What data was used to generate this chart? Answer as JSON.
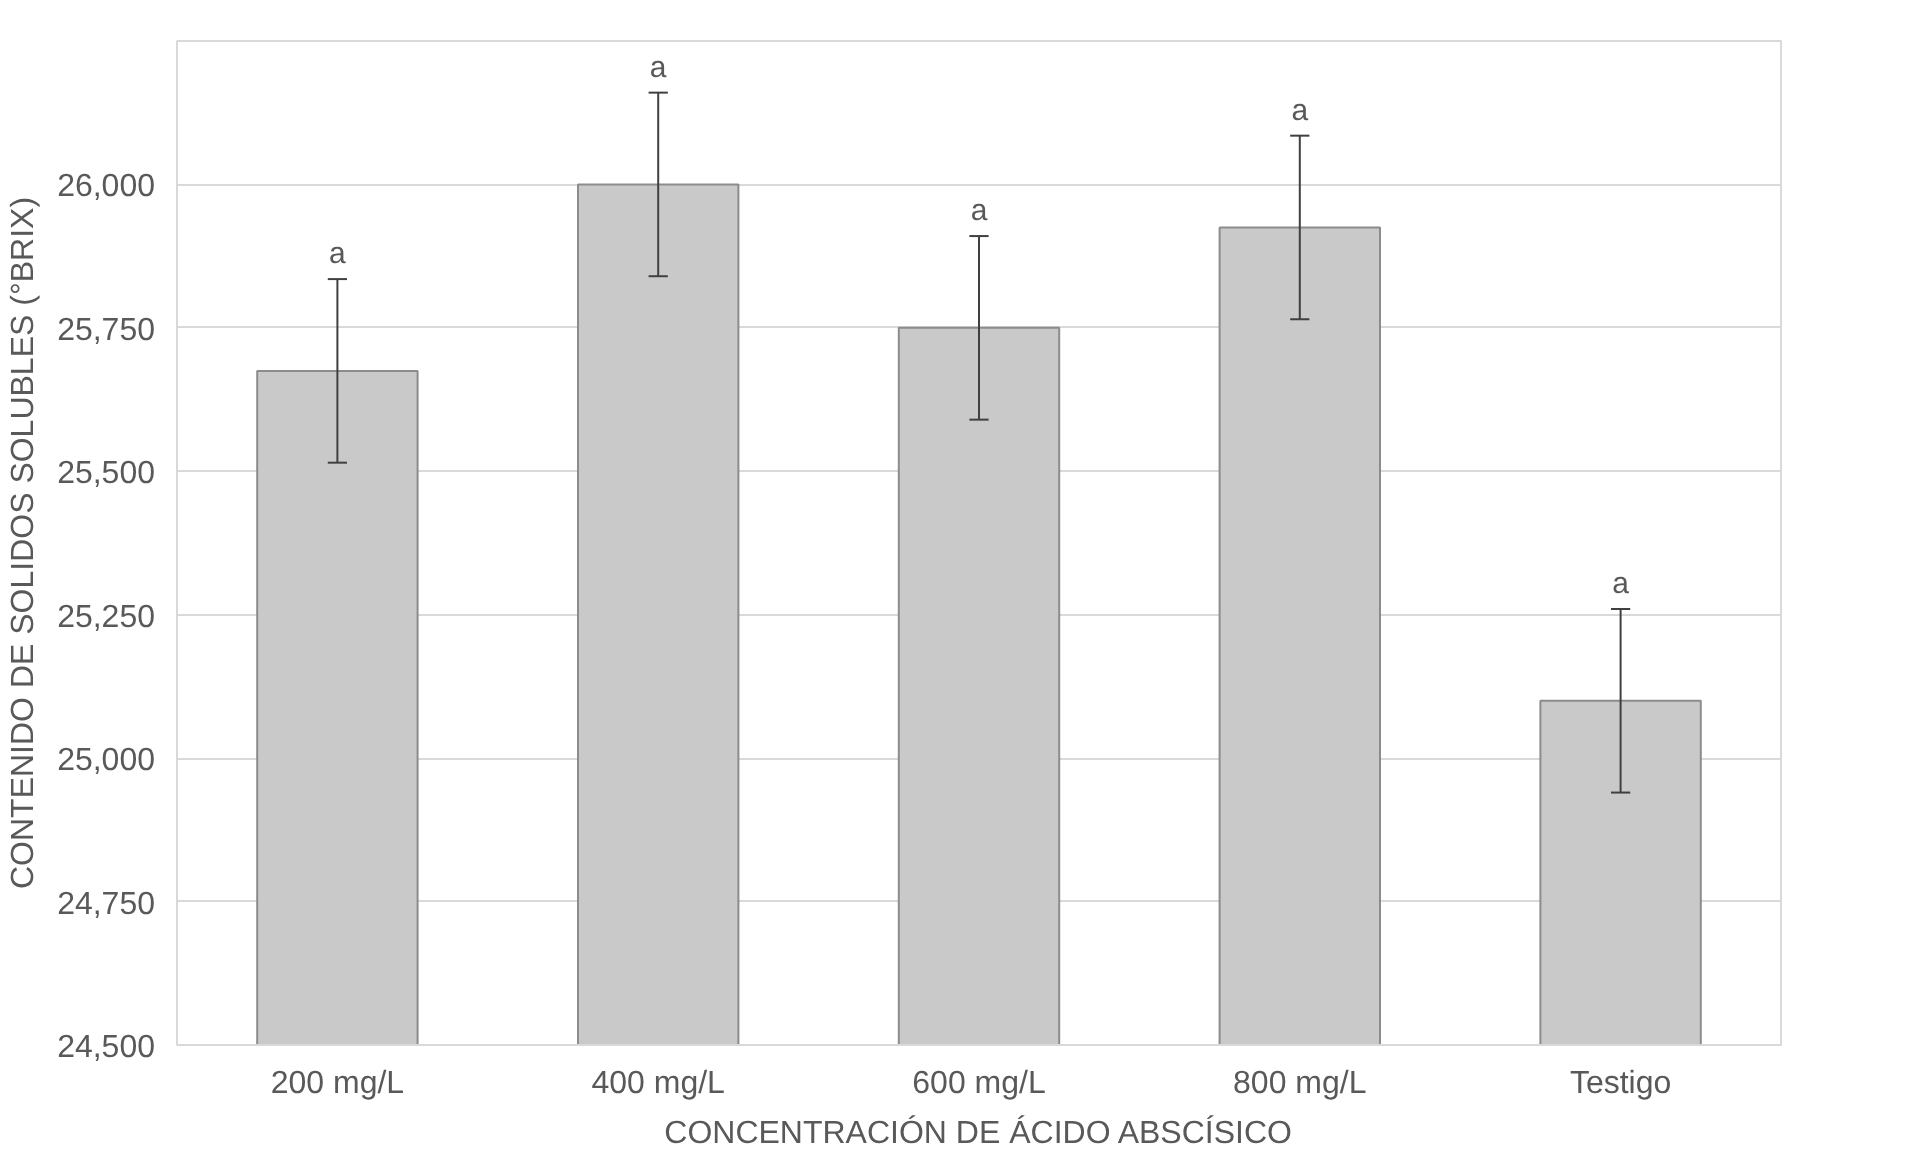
{
  "chart_data": {
    "type": "bar",
    "xlabel": "CONCENTRACIÓN DE ÁCIDO ABSCÍSICO",
    "ylabel": "CONTENIDO DE SOLIDOS SOLUBLES (°BRIX)",
    "categories": [
      "200 mg/L",
      "400 mg/L",
      "600 mg/L",
      "800 mg/L",
      "Testigo"
    ],
    "values": [
      25675,
      26000,
      25750,
      25925,
      25100
    ],
    "errors": [
      160,
      160,
      160,
      160,
      160
    ],
    "color": "#c9c9c9",
    "ylim": [
      24500,
      26250
    ],
    "yticks": [
      {
        "value": 24500,
        "label": "24,500"
      },
      {
        "value": 24750,
        "label": "24,750"
      },
      {
        "value": 25000,
        "label": "25,000"
      },
      {
        "value": 25250,
        "label": "25,250"
      },
      {
        "value": 25500,
        "label": "25,500"
      },
      {
        "value": 25750,
        "label": "25,750"
      },
      {
        "value": 26000,
        "label": "26,000"
      }
    ],
    "grid": "y",
    "annotations": [
      {
        "text": "a",
        "x": "200 mg/L",
        "y": 25835
      },
      {
        "text": "a",
        "x": "400 mg/L",
        "y": 26160
      },
      {
        "text": "a",
        "x": "600 mg/L",
        "y": 25910
      },
      {
        "text": "a",
        "x": "800 mg/L",
        "y": 26085
      },
      {
        "text": "a",
        "x": "Testigo",
        "y": 25260
      }
    ]
  }
}
